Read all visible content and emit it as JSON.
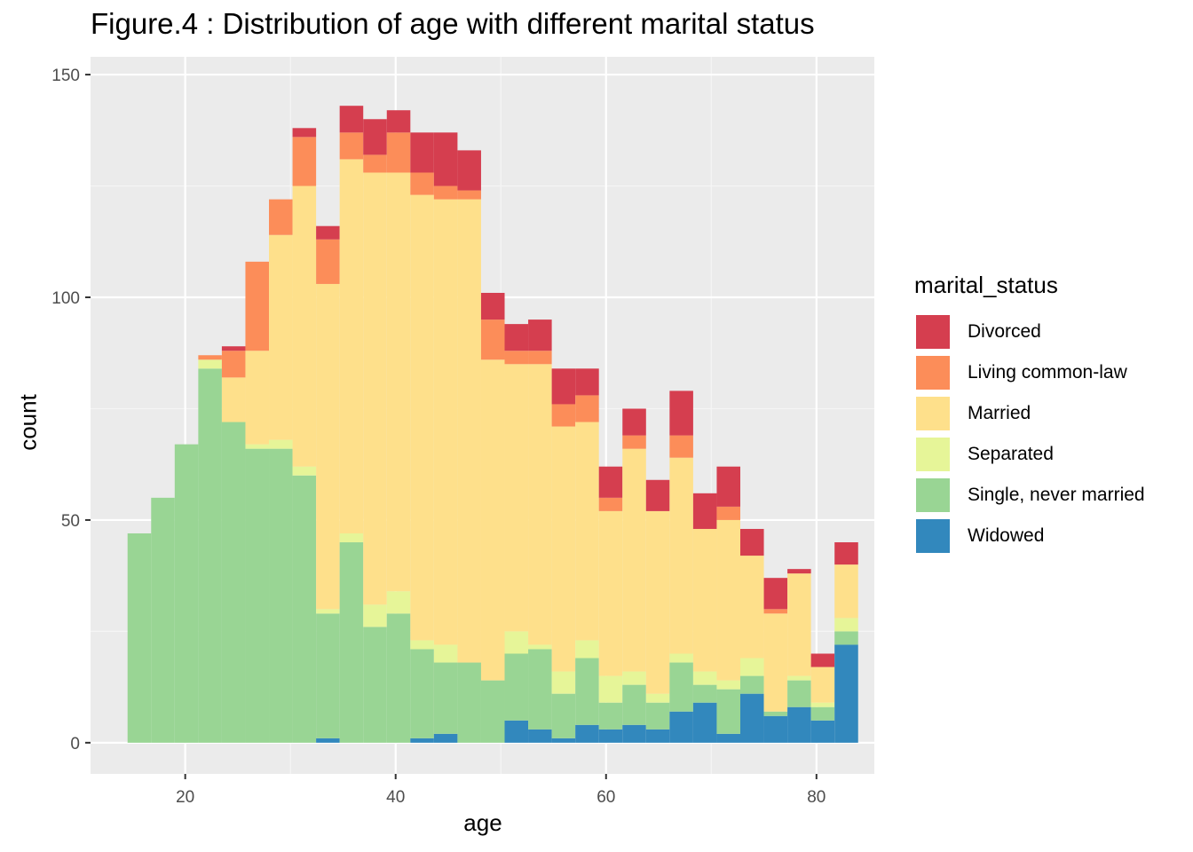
{
  "chart_data": {
    "type": "bar",
    "subtype": "stacked-histogram",
    "title": "Figure.4 : Distribution of age with different marital status",
    "xlabel": "age",
    "ylabel": "count",
    "xlim": [
      11,
      85.5
    ],
    "ylim": [
      -7,
      154
    ],
    "x_ticks": [
      20,
      40,
      60,
      80
    ],
    "y_ticks": [
      0,
      50,
      100,
      150
    ],
    "grid": true,
    "legend_title": "marital_status",
    "legend_position": "right",
    "bin_width": 2.24,
    "bin_start": 14.52,
    "series": [
      {
        "name": "Widowed",
        "color": "#3288BD",
        "values": [
          0,
          0,
          0,
          0,
          0,
          0,
          0,
          0,
          1,
          0,
          0,
          0,
          1,
          2,
          0,
          0,
          5,
          3,
          1,
          4,
          3,
          4,
          3,
          7,
          9,
          2,
          11,
          6,
          8,
          5,
          22
        ]
      },
      {
        "name": "Single, never married",
        "color": "#99D594",
        "values": [
          47,
          55,
          67,
          84,
          72,
          66,
          66,
          60,
          28,
          45,
          26,
          29,
          20,
          16,
          18,
          14,
          15,
          18,
          10,
          15,
          6,
          9,
          6,
          11,
          4,
          10,
          4,
          1,
          6,
          3,
          3
        ]
      },
      {
        "name": "Separated",
        "color": "#E6F598",
        "values": [
          0,
          0,
          0,
          2,
          0,
          1,
          2,
          2,
          1,
          2,
          5,
          5,
          2,
          4,
          0,
          0,
          5,
          1,
          5,
          4,
          6,
          3,
          2,
          2,
          3,
          2,
          4,
          0,
          1,
          1,
          3
        ]
      },
      {
        "name": "Married",
        "color": "#FEE08B",
        "values": [
          0,
          0,
          0,
          0,
          10,
          21,
          46,
          63,
          73,
          84,
          97,
          94,
          100,
          100,
          104,
          72,
          60,
          63,
          55,
          49,
          37,
          50,
          41,
          44,
          32,
          36,
          23,
          22,
          23,
          8,
          12
        ]
      },
      {
        "name": "Living common-law",
        "color": "#FC8D59",
        "values": [
          0,
          0,
          0,
          1,
          6,
          20,
          8,
          11,
          10,
          6,
          4,
          9,
          5,
          3,
          2,
          9,
          3,
          3,
          5,
          6,
          3,
          3,
          0,
          5,
          0,
          3,
          0,
          1,
          0,
          0,
          0
        ]
      },
      {
        "name": "Divorced",
        "color": "#D53E4F",
        "values": [
          0,
          0,
          0,
          0,
          1,
          0,
          0,
          2,
          3,
          6,
          8,
          5,
          9,
          12,
          9,
          6,
          6,
          7,
          8,
          6,
          7,
          6,
          7,
          10,
          8,
          9,
          6,
          7,
          1,
          3,
          5
        ]
      }
    ],
    "legend_order": [
      "Divorced",
      "Living common-law",
      "Married",
      "Separated",
      "Single, never married",
      "Widowed"
    ]
  }
}
